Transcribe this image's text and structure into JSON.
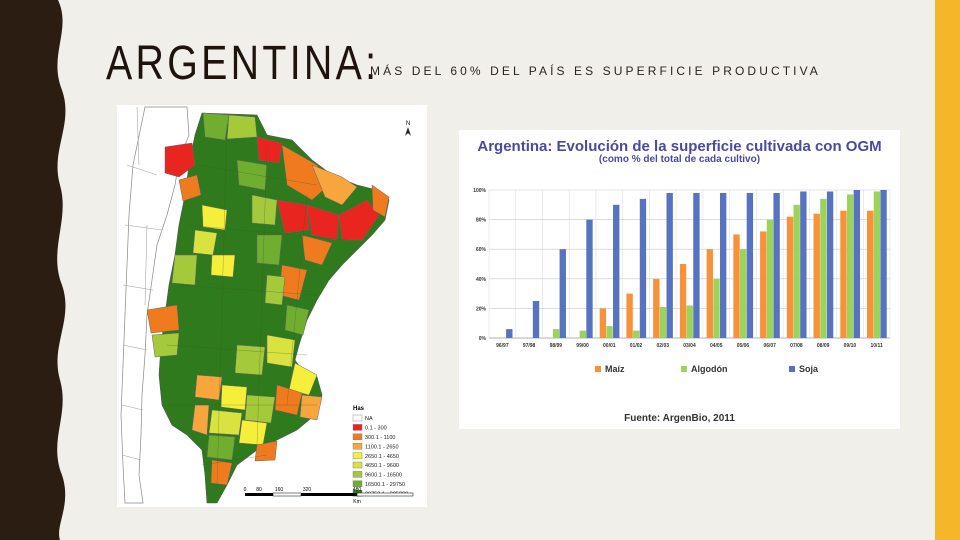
{
  "slide": {
    "title": "ARGENTINA:",
    "subtitle": "MÁS DEL 60% DEL PAÍS ES SUPERFICIE PRODUCTIVA",
    "colors": {
      "background": "#f1efe9",
      "left_band": "#2b1d12",
      "right_band": "#f6b62a"
    }
  },
  "map": {
    "north_label": "N",
    "legend_title": "Has",
    "legend": [
      {
        "label": "NA",
        "color": "#ffffff"
      },
      {
        "label": "0.1 - 300",
        "color": "#e8261f"
      },
      {
        "label": "300.1 - 1100",
        "color": "#f07b1e"
      },
      {
        "label": "1100.1 - 2650",
        "color": "#f7a53c"
      },
      {
        "label": "2650.1 - 4650",
        "color": "#f6ef3a"
      },
      {
        "label": "4650.1 - 9600",
        "color": "#d9e23f"
      },
      {
        "label": "9600.1 - 16500",
        "color": "#a4c93a"
      },
      {
        "label": "16500.1 - 29750",
        "color": "#6fae2e"
      },
      {
        "label": "29750.1 - 285800",
        "color": "#2f7a1c"
      }
    ],
    "scale": {
      "ticks": [
        "0",
        "80",
        "160",
        "320",
        "480"
      ],
      "unit": "Km"
    }
  },
  "chart_data": {
    "type": "bar",
    "title": "Argentina: Evolución de la superficie cultivada con OGM",
    "subtitle": "(como % del total de cada cultivo)",
    "categories": [
      "96/97",
      "97/98",
      "98/99",
      "99/00",
      "00/01",
      "01/02",
      "02/03",
      "03/04",
      "04/05",
      "05/06",
      "06/07",
      "07/08",
      "08/09",
      "09/10",
      "10/11"
    ],
    "series": [
      {
        "name": "Maíz",
        "color": "#f7923a",
        "values": [
          0,
          0,
          0,
          0,
          20,
          30,
          40,
          50,
          60,
          70,
          72,
          82,
          84,
          86,
          86
        ]
      },
      {
        "name": "Algodón",
        "color": "#9bd45a",
        "values": [
          0,
          0,
          6,
          5,
          8,
          5,
          21,
          22,
          40,
          60,
          80,
          90,
          94,
          97,
          99
        ]
      },
      {
        "name": "Soja",
        "color": "#5773c0",
        "values": [
          6,
          25,
          60,
          80,
          90,
          94,
          98,
          98,
          98,
          98,
          98,
          99,
          99,
          100,
          100
        ]
      }
    ],
    "ylim": [
      0,
      100
    ],
    "yticks": [
      "0%",
      "20%",
      "40%",
      "60%",
      "80%",
      "100%"
    ],
    "legend_position": "bottom",
    "grid": true,
    "source": "Fuente: ArgenBio, 2011"
  }
}
